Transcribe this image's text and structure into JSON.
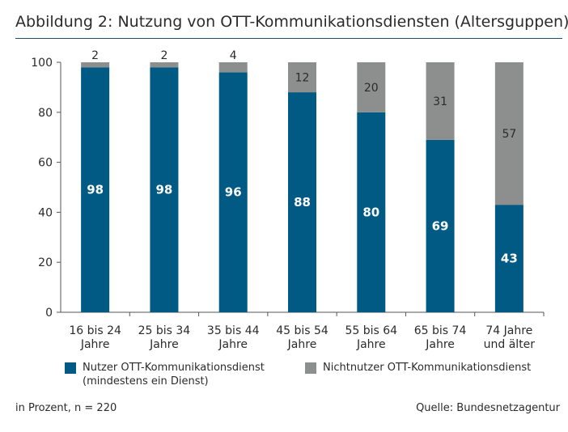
{
  "title": "Abbildung 2: Nutzung von OTT-Kommunikationsdiensten (Altersguppen)",
  "footer": {
    "note": "in Prozent, n = 220",
    "source": "Quelle: Bundesnetzagentur"
  },
  "colors": {
    "users": "#005a84",
    "nonusers": "#8c8f8e",
    "rule": "#1f4e66"
  },
  "chart_data": {
    "type": "bar",
    "stacked": true,
    "categories": [
      [
        "16 bis 24",
        "Jahre"
      ],
      [
        "25 bis 34",
        "Jahre"
      ],
      [
        "35 bis 44",
        "Jahre"
      ],
      [
        "45 bis 54",
        "Jahre"
      ],
      [
        "55 bis 64",
        "Jahre"
      ],
      [
        "65 bis 74",
        "Jahre"
      ],
      [
        "74 Jahre",
        "und älter"
      ]
    ],
    "series": [
      {
        "name": "Nutzer OTT-Kommunikationsdienst (mindestens ein Dienst)",
        "name_lines": [
          "Nutzer OTT-Kommunikationsdienst",
          "(mindestens ein Dienst)"
        ],
        "values": [
          98,
          98,
          96,
          88,
          80,
          69,
          43
        ]
      },
      {
        "name": "Nichtnutzer OTT-Kommunikationsdienst",
        "name_lines": [
          "Nichtnutzer OTT-Kommunikationsdienst"
        ],
        "values": [
          2,
          2,
          4,
          12,
          20,
          31,
          57
        ]
      }
    ],
    "ylim": [
      0,
      100
    ],
    "yticks": [
      0,
      20,
      40,
      60,
      80,
      100
    ],
    "grid": false,
    "legend_position": "bottom"
  }
}
